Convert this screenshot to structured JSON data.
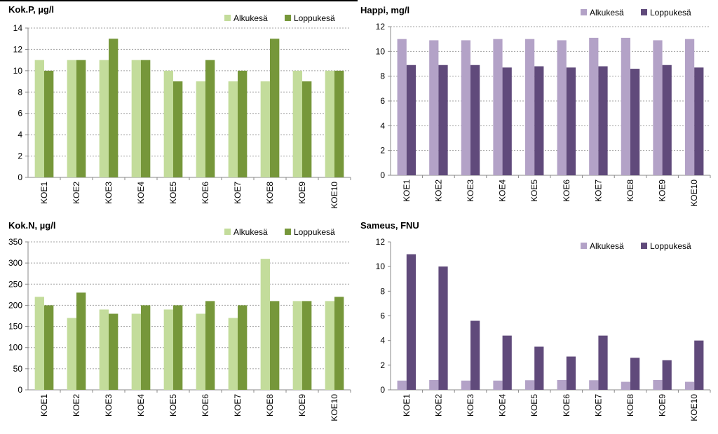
{
  "chart_data": [
    {
      "type": "bar",
      "title": "Kok.P, µg/l",
      "categories": [
        "KOE1",
        "KOE2",
        "KOE3",
        "KOE4",
        "KOE5",
        "KOE6",
        "KOE7",
        "KOE8",
        "KOE9",
        "KOE10"
      ],
      "series": [
        {
          "name": "Alkukesä",
          "color": "#c3dc9b",
          "values": [
            11,
            11,
            11,
            11,
            10,
            9,
            9,
            9,
            10,
            10
          ]
        },
        {
          "name": "Loppukesä",
          "color": "#76973a",
          "values": [
            10,
            11,
            13,
            11,
            9,
            11,
            10,
            13,
            9,
            10
          ]
        }
      ],
      "yticks": [
        0,
        2,
        4,
        6,
        8,
        10,
        12,
        14
      ],
      "ylim": [
        0,
        14
      ],
      "grid": true,
      "legend": "top-right"
    },
    {
      "type": "bar",
      "title": "Happi, mg/l",
      "categories": [
        "KOE1",
        "KOE2",
        "KOE3",
        "KOE4",
        "KOE5",
        "KOE6",
        "KOE7",
        "KOE8",
        "KOE9",
        "KOE10"
      ],
      "series": [
        {
          "name": "Alkukesä",
          "color": "#b3a2c7",
          "values": [
            11.0,
            10.9,
            10.9,
            11.0,
            11.0,
            10.9,
            11.1,
            11.1,
            10.9,
            11.0
          ]
        },
        {
          "name": "Loppukesä",
          "color": "#604a7b",
          "values": [
            8.9,
            8.9,
            8.9,
            8.7,
            8.8,
            8.7,
            8.8,
            8.6,
            8.9,
            8.7
          ]
        }
      ],
      "yticks": [
        0,
        2,
        4,
        6,
        8,
        10,
        12
      ],
      "ylim": [
        0,
        12
      ],
      "grid": true,
      "legend": "top-right"
    },
    {
      "type": "bar",
      "title": "Kok.N, µg/l",
      "categories": [
        "KOE1",
        "KOE2",
        "KOE3",
        "KOE4",
        "KOE5",
        "KOE6",
        "KOE7",
        "KOE8",
        "KOE9",
        "KOE10"
      ],
      "series": [
        {
          "name": "Alkukesä",
          "color": "#c3dc9b",
          "values": [
            220,
            170,
            190,
            180,
            190,
            180,
            170,
            310,
            210,
            210
          ]
        },
        {
          "name": "Loppukesä",
          "color": "#76973a",
          "values": [
            200,
            230,
            180,
            200,
            200,
            210,
            200,
            210,
            210,
            220
          ]
        }
      ],
      "yticks": [
        0,
        50,
        100,
        150,
        200,
        250,
        300,
        350
      ],
      "ylim": [
        0,
        350
      ],
      "grid": true,
      "legend": "top-right"
    },
    {
      "type": "bar",
      "title": "Sameus, FNU",
      "categories": [
        "KOE1",
        "KOE2",
        "KOE3",
        "KOE4",
        "KOE5",
        "KOE6",
        "KOE7",
        "KOE8",
        "KOE9",
        "KOE10"
      ],
      "series": [
        {
          "name": "Alkukesä",
          "color": "#b3a2c7",
          "values": [
            0.75,
            0.8,
            0.75,
            0.75,
            0.78,
            0.8,
            0.78,
            0.65,
            0.8,
            0.65
          ]
        },
        {
          "name": "Loppukesä",
          "color": "#604a7b",
          "values": [
            11.0,
            10.0,
            5.6,
            4.4,
            3.5,
            2.7,
            4.4,
            2.6,
            2.4,
            4.0
          ]
        }
      ],
      "yticks": [
        0,
        2,
        4,
        6,
        8,
        10,
        12
      ],
      "ylim": [
        0,
        12
      ],
      "grid": false,
      "legend": "top-right"
    }
  ]
}
